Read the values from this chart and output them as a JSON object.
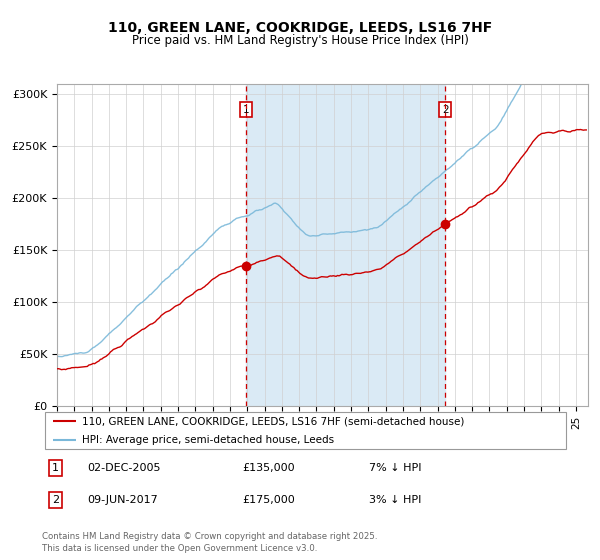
{
  "title": "110, GREEN LANE, COOKRIDGE, LEEDS, LS16 7HF",
  "subtitle": "Price paid vs. HM Land Registry's House Price Index (HPI)",
  "legend_line1": "110, GREEN LANE, COOKRIDGE, LEEDS, LS16 7HF (semi-detached house)",
  "legend_line2": "HPI: Average price, semi-detached house, Leeds",
  "annotation1_label": "1",
  "annotation1_date": "02-DEC-2005",
  "annotation1_price": "£135,000",
  "annotation1_hpi": "7% ↓ HPI",
  "annotation2_label": "2",
  "annotation2_date": "09-JUN-2017",
  "annotation2_price": "£175,000",
  "annotation2_hpi": "3% ↓ HPI",
  "footer": "Contains HM Land Registry data © Crown copyright and database right 2025.\nThis data is licensed under the Open Government Licence v3.0.",
  "hpi_color": "#7ab8d9",
  "property_color": "#cc0000",
  "shading_color": "#daeaf5",
  "vline_color": "#cc0000",
  "annotation_box_color": "#cc0000",
  "background_color": "#ffffff",
  "ylim": [
    0,
    310000
  ],
  "yticks": [
    0,
    50000,
    100000,
    150000,
    200000,
    250000,
    300000
  ],
  "ytick_labels": [
    "£0",
    "£50K",
    "£100K",
    "£150K",
    "£200K",
    "£250K",
    "£300K"
  ],
  "sale1_x": 2005.92,
  "sale1_y": 135000,
  "sale2_x": 2017.44,
  "sale2_y": 175000,
  "xmin": 1995.0,
  "xmax": 2025.7
}
